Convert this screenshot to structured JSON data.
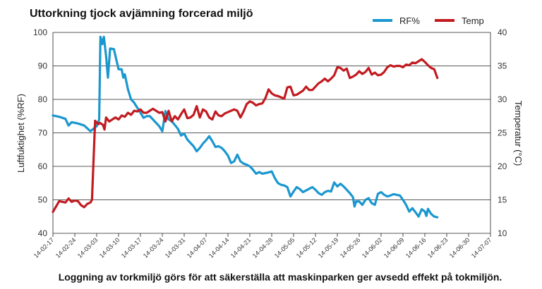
{
  "chart_data": {
    "type": "line",
    "title": "Uttorkning tjock avjämning forcerad miljö",
    "caption": "Loggning av torkmiljö görs för att säkerställa att maskinparken ger avsedd effekt på tokmiljön.",
    "ylabel_left": "Luftfuktighet (%RF)",
    "ylabel_right": "Temperatur (°C)",
    "ylim_left": [
      40,
      100
    ],
    "ylim_right": [
      10,
      40
    ],
    "yticks_left": [
      40,
      50,
      60,
      70,
      80,
      90,
      100
    ],
    "yticks_right": [
      10,
      15,
      20,
      25,
      30,
      35,
      40
    ],
    "x_ticks": [
      "14-02-17",
      "14-02-24",
      "14-03-03",
      "14-03-10",
      "14-03-17",
      "14-03-24",
      "14-03-31",
      "14-04-07",
      "14-04-14",
      "14-04-21",
      "14-04-28",
      "14-05-05",
      "14-05-12",
      "14-05-19",
      "14-05-26",
      "14-06-02",
      "14-06-09",
      "14-06-16",
      "14-06-23",
      "14-06-30",
      "14-07-07"
    ],
    "x_unit": "days from first tick label (7 days between labels)",
    "grid": true,
    "legend_position": "top-right",
    "series": [
      {
        "name": "RF%",
        "axis": "left",
        "color": "#1a97cf",
        "points": [
          [
            0,
            75.2
          ],
          [
            2,
            74.8
          ],
          [
            4,
            74.2
          ],
          [
            5,
            72.2
          ],
          [
            6,
            73.2
          ],
          [
            8,
            72.8
          ],
          [
            10,
            72.2
          ],
          [
            12,
            70.5
          ],
          [
            14,
            72
          ],
          [
            14.8,
            74
          ],
          [
            15.2,
            98.7
          ],
          [
            15.8,
            96.5
          ],
          [
            16.3,
            98.7
          ],
          [
            17,
            93
          ],
          [
            17.6,
            86.5
          ],
          [
            18.3,
            95.2
          ],
          [
            19.5,
            95
          ],
          [
            21,
            89
          ],
          [
            22,
            89
          ],
          [
            22.5,
            86.5
          ],
          [
            23,
            87.5
          ],
          [
            24,
            83
          ],
          [
            25,
            80
          ],
          [
            26,
            79
          ],
          [
            27,
            77.5
          ],
          [
            28,
            76
          ],
          [
            29,
            74.5
          ],
          [
            30,
            75
          ],
          [
            31,
            75
          ],
          [
            32,
            74
          ],
          [
            33,
            73
          ],
          [
            34,
            72
          ],
          [
            35,
            70.5
          ],
          [
            36,
            76.5
          ],
          [
            37,
            74
          ],
          [
            38,
            73.5
          ],
          [
            40,
            71.2
          ],
          [
            41,
            69.2
          ],
          [
            42,
            69.8
          ],
          [
            43,
            68
          ],
          [
            44,
            67
          ],
          [
            45,
            66
          ],
          [
            46,
            64.5
          ],
          [
            47,
            65.5
          ],
          [
            48,
            66.8
          ],
          [
            49,
            67.8
          ],
          [
            50,
            69
          ],
          [
            51,
            67.5
          ],
          [
            52,
            65.8
          ],
          [
            53,
            66
          ],
          [
            54,
            65.5
          ],
          [
            55,
            64.5
          ],
          [
            56,
            63.2
          ],
          [
            57,
            61
          ],
          [
            58,
            61.5
          ],
          [
            59,
            63.5
          ],
          [
            60,
            61.5
          ],
          [
            61,
            60.8
          ],
          [
            62,
            60.5
          ],
          [
            63,
            60
          ],
          [
            64,
            59
          ],
          [
            65,
            57.8
          ],
          [
            66,
            58.3
          ],
          [
            67,
            57.8
          ],
          [
            68,
            58
          ],
          [
            69,
            58.2
          ],
          [
            70,
            58.5
          ],
          [
            71,
            56.5
          ],
          [
            72,
            55
          ],
          [
            73,
            54.5
          ],
          [
            74,
            54.3
          ],
          [
            75,
            53.8
          ],
          [
            76,
            51
          ],
          [
            77,
            52.5
          ],
          [
            78,
            53.8
          ],
          [
            79,
            53.2
          ],
          [
            80,
            52.3
          ],
          [
            81,
            52.8
          ],
          [
            82,
            53.3
          ],
          [
            83,
            53.8
          ],
          [
            84,
            53
          ],
          [
            85,
            52
          ],
          [
            86,
            51.5
          ],
          [
            87,
            52.3
          ],
          [
            88,
            52.7
          ],
          [
            89,
            52.5
          ],
          [
            90,
            55.2
          ],
          [
            91,
            54
          ],
          [
            92,
            54.8
          ],
          [
            93,
            54
          ],
          [
            94,
            53
          ],
          [
            95,
            52
          ],
          [
            96,
            50.8
          ],
          [
            96.5,
            48
          ],
          [
            97,
            49.5
          ],
          [
            98,
            49.5
          ],
          [
            99,
            48.5
          ],
          [
            100,
            50
          ],
          [
            101,
            50.5
          ],
          [
            102,
            49
          ],
          [
            103,
            48.5
          ],
          [
            104,
            51.8
          ],
          [
            105,
            52.3
          ],
          [
            106,
            51.5
          ],
          [
            107,
            51
          ],
          [
            108,
            51.3
          ],
          [
            109,
            51.7
          ],
          [
            110,
            51.5
          ],
          [
            111,
            51.3
          ],
          [
            112,
            50
          ],
          [
            113,
            48.5
          ],
          [
            114,
            46.5
          ],
          [
            115,
            47.5
          ],
          [
            116,
            46.3
          ],
          [
            117,
            45
          ],
          [
            118,
            47.2
          ],
          [
            119,
            46.5
          ],
          [
            119.5,
            45.2
          ],
          [
            120,
            47.3
          ],
          [
            121,
            45.8
          ],
          [
            122,
            45
          ],
          [
            123,
            44.8
          ]
        ]
      },
      {
        "name": "Temp",
        "axis": "right",
        "color": "#c11b20",
        "points": [
          [
            0,
            13.2
          ],
          [
            2,
            14.8
          ],
          [
            3,
            14.7
          ],
          [
            4,
            14.6
          ],
          [
            5,
            15.2
          ],
          [
            6,
            14.7
          ],
          [
            7,
            14.9
          ],
          [
            8,
            14.8
          ],
          [
            9,
            14.2
          ],
          [
            10,
            13.9
          ],
          [
            11,
            14.4
          ],
          [
            12,
            14.6
          ],
          [
            12.5,
            15
          ],
          [
            13,
            21
          ],
          [
            13.5,
            26.8
          ],
          [
            14.5,
            26.3
          ],
          [
            15,
            26.5
          ],
          [
            16,
            26.2
          ],
          [
            16.5,
            25.5
          ],
          [
            17,
            27.3
          ],
          [
            18,
            26.7
          ],
          [
            19,
            27
          ],
          [
            20,
            27.3
          ],
          [
            21,
            27
          ],
          [
            22,
            27.6
          ],
          [
            23,
            27.4
          ],
          [
            24,
            28
          ],
          [
            25,
            27.7
          ],
          [
            26,
            28.3
          ],
          [
            27,
            28.2
          ],
          [
            28,
            28.5
          ],
          [
            29,
            28
          ],
          [
            30,
            28
          ],
          [
            31,
            28.3
          ],
          [
            32,
            28.6
          ],
          [
            33,
            28.3
          ],
          [
            34,
            28
          ],
          [
            35,
            28.1
          ],
          [
            36,
            26.7
          ],
          [
            37,
            28.3
          ],
          [
            38,
            26.7
          ],
          [
            39,
            27.5
          ],
          [
            40,
            27
          ],
          [
            41,
            27.8
          ],
          [
            42,
            28.5
          ],
          [
            43,
            27.2
          ],
          [
            44,
            27.3
          ],
          [
            45,
            27.7
          ],
          [
            46,
            29
          ],
          [
            47,
            27.3
          ],
          [
            48,
            28.5
          ],
          [
            49,
            28.2
          ],
          [
            50,
            27.3
          ],
          [
            51,
            27
          ],
          [
            52,
            28.2
          ],
          [
            53,
            27.6
          ],
          [
            54,
            27.5
          ],
          [
            55,
            27.9
          ],
          [
            56,
            28.1
          ],
          [
            57,
            28.3
          ],
          [
            58,
            28.5
          ],
          [
            59,
            28.3
          ],
          [
            60,
            27.3
          ],
          [
            61,
            28.2
          ],
          [
            62,
            29.3
          ],
          [
            63,
            29.7
          ],
          [
            64,
            29.5
          ],
          [
            65,
            29.1
          ],
          [
            66,
            29.3
          ],
          [
            67,
            29.4
          ],
          [
            68,
            30.2
          ],
          [
            69,
            31.5
          ],
          [
            70,
            30.9
          ],
          [
            71,
            30.6
          ],
          [
            72,
            30.5
          ],
          [
            73,
            30.3
          ],
          [
            74,
            30.1
          ],
          [
            75,
            31.8
          ],
          [
            76,
            31.9
          ],
          [
            77,
            30.6
          ],
          [
            78,
            30.7
          ],
          [
            79,
            31
          ],
          [
            80,
            31.3
          ],
          [
            81,
            31.9
          ],
          [
            82,
            31.4
          ],
          [
            83,
            31.4
          ],
          [
            84,
            31.9
          ],
          [
            85,
            32.4
          ],
          [
            86,
            32.7
          ],
          [
            87,
            33.1
          ],
          [
            88,
            32.7
          ],
          [
            89,
            33.1
          ],
          [
            90,
            33.6
          ],
          [
            91,
            34.8
          ],
          [
            92,
            34.7
          ],
          [
            93,
            34.3
          ],
          [
            94,
            34.6
          ],
          [
            95,
            33.2
          ],
          [
            96,
            33.4
          ],
          [
            97,
            33.7
          ],
          [
            98,
            34.2
          ],
          [
            99,
            33.8
          ],
          [
            100,
            34.1
          ],
          [
            101,
            34.7
          ],
          [
            102,
            33.7
          ],
          [
            103,
            34
          ],
          [
            104,
            33.6
          ],
          [
            105,
            33.7
          ],
          [
            106,
            34.1
          ],
          [
            107,
            34.8
          ],
          [
            108,
            35.1
          ],
          [
            109,
            34.9
          ],
          [
            110,
            35
          ],
          [
            111,
            35
          ],
          [
            112,
            34.8
          ],
          [
            113,
            35.2
          ],
          [
            114,
            35.1
          ],
          [
            115,
            35.5
          ],
          [
            116,
            35.4
          ],
          [
            117,
            35.7
          ],
          [
            118,
            36
          ],
          [
            119,
            35.6
          ],
          [
            120,
            35.1
          ],
          [
            121,
            34.7
          ],
          [
            122,
            34.5
          ],
          [
            123,
            33.2
          ]
        ]
      }
    ]
  }
}
